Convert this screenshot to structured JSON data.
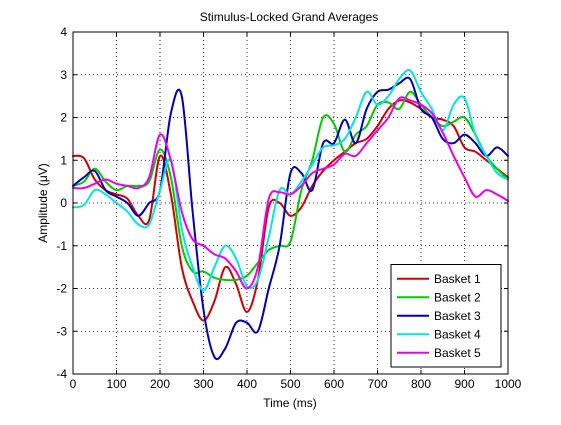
{
  "chart_data": {
    "type": "line",
    "title": "Stimulus-Locked Grand Averages",
    "xlabel": "Time (ms)",
    "ylabel": "Amplitude (μV)",
    "xlim": [
      0,
      1000
    ],
    "ylim": [
      -4,
      4
    ],
    "xticks": [
      0,
      100,
      200,
      300,
      400,
      500,
      600,
      700,
      800,
      900,
      1000
    ],
    "yticks": [
      -4,
      -3,
      -2,
      -1,
      0,
      1,
      2,
      3,
      4
    ],
    "grid": true,
    "grid_style": "dotted",
    "legend_position": "bottom-right",
    "x": [
      0,
      25,
      50,
      75,
      100,
      125,
      150,
      175,
      200,
      225,
      250,
      275,
      300,
      325,
      350,
      375,
      400,
      425,
      450,
      475,
      500,
      525,
      550,
      575,
      600,
      625,
      650,
      675,
      700,
      725,
      750,
      775,
      800,
      825,
      850,
      875,
      900,
      925,
      950,
      975,
      1000
    ],
    "series": [
      {
        "name": "Basket 1",
        "color": "#d40000",
        "values": [
          1.1,
          1.05,
          0.55,
          0.3,
          0.2,
          0.1,
          -0.3,
          -0.4,
          1.1,
          0.2,
          -1.5,
          -2.3,
          -2.75,
          -2.3,
          -1.5,
          -1.9,
          -2.55,
          -1.8,
          -0.1,
          0.0,
          -0.3,
          -0.1,
          0.4,
          0.75,
          1.0,
          1.2,
          1.4,
          1.5,
          1.8,
          2.2,
          2.4,
          2.35,
          2.2,
          2.0,
          1.95,
          1.8,
          1.3,
          1.2,
          1.0,
          0.8,
          0.6
        ]
      },
      {
        "name": "Basket 2",
        "color": "#00cc00",
        "values": [
          0.4,
          0.5,
          0.8,
          0.5,
          0.3,
          0.4,
          0.4,
          0.5,
          1.25,
          0.6,
          -1.0,
          -1.6,
          -1.6,
          -1.75,
          -1.8,
          -1.8,
          -1.7,
          -1.4,
          -1.1,
          -1.0,
          -0.9,
          0.3,
          1.0,
          2.0,
          1.85,
          1.2,
          1.6,
          1.8,
          2.3,
          2.35,
          2.2,
          2.6,
          2.3,
          2.0,
          1.8,
          1.9,
          2.0,
          1.6,
          1.1,
          0.8,
          0.55
        ]
      },
      {
        "name": "Basket 3",
        "color": "#0000bb",
        "values": [
          0.4,
          0.6,
          0.75,
          0.3,
          0.15,
          0.0,
          -0.3,
          0.0,
          0.3,
          2.1,
          2.5,
          -0.2,
          -2.5,
          -3.6,
          -3.4,
          -2.8,
          -2.8,
          -3.0,
          -2.0,
          -1.0,
          0.7,
          0.7,
          0.3,
          1.4,
          1.4,
          1.95,
          1.4,
          2.2,
          2.6,
          2.65,
          2.8,
          2.9,
          2.2,
          2.0,
          1.5,
          1.4,
          1.6,
          1.4,
          1.1,
          1.3,
          1.1
        ]
      },
      {
        "name": "Basket 4",
        "color": "#00e5e5",
        "values": [
          -0.1,
          -0.05,
          0.3,
          0.2,
          0.0,
          -0.2,
          -0.5,
          -0.5,
          0.3,
          1.0,
          -0.6,
          -1.5,
          -2.05,
          -1.5,
          -1.0,
          -1.3,
          -1.95,
          -1.8,
          -0.8,
          0.3,
          0.2,
          0.5,
          0.9,
          1.3,
          1.35,
          1.5,
          2.0,
          2.6,
          2.3,
          2.5,
          2.9,
          3.1,
          2.6,
          2.2,
          1.7,
          2.3,
          2.45,
          1.6,
          1.1,
          0.7,
          0.55
        ]
      },
      {
        "name": "Basket 5",
        "color": "#ee00ee",
        "values": [
          0.35,
          0.35,
          0.45,
          0.55,
          0.45,
          0.4,
          0.35,
          0.6,
          1.6,
          1.0,
          -0.2,
          -0.85,
          -1.0,
          -1.2,
          -1.3,
          -1.6,
          -2.0,
          -1.5,
          0.1,
          0.25,
          0.2,
          0.4,
          0.7,
          0.8,
          0.9,
          1.15,
          1.1,
          1.4,
          1.7,
          2.0,
          2.45,
          2.4,
          2.3,
          2.1,
          1.65,
          1.1,
          0.6,
          0.15,
          0.3,
          0.2,
          0.05
        ]
      }
    ]
  }
}
